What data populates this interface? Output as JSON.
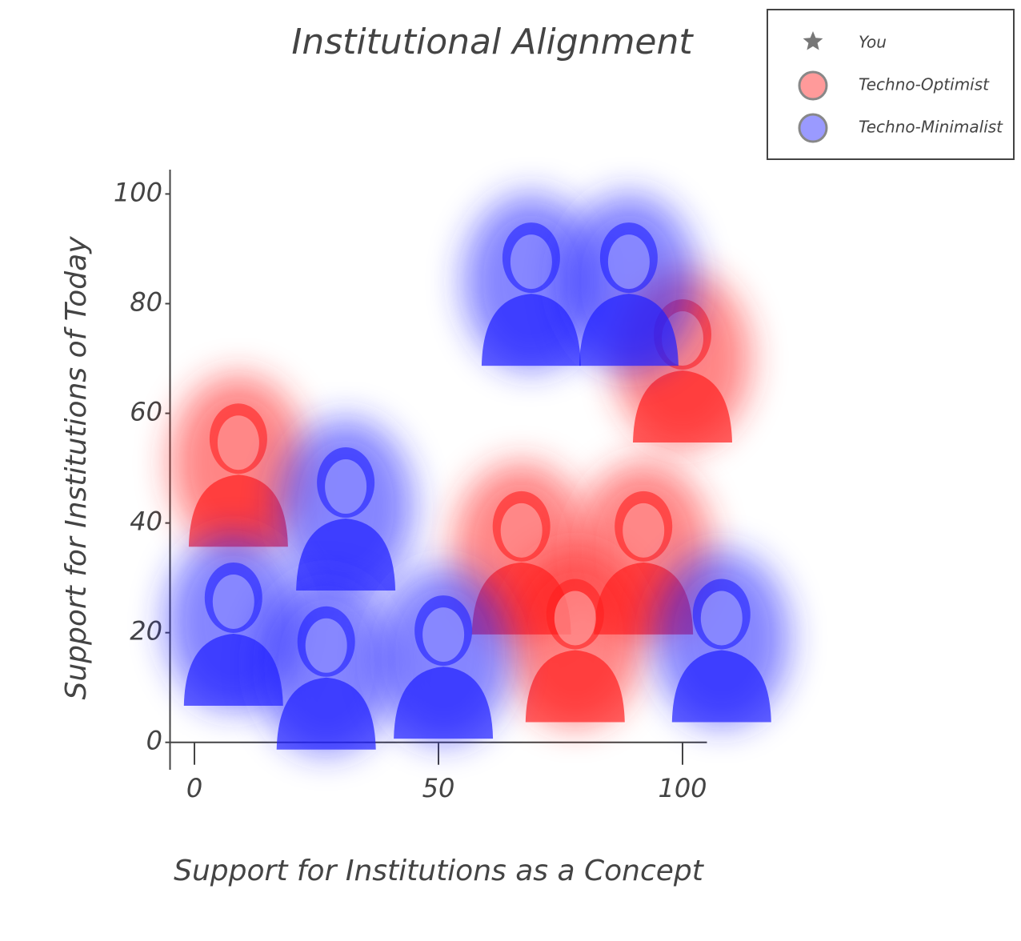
{
  "chart_data": {
    "type": "scatter",
    "title": "Institutional Alignment",
    "x_label": "Support for Institutions as a Concept",
    "y_label": "Support for Institutions of Today",
    "xlim": [
      -5,
      105
    ],
    "ylim": [
      -5,
      104
    ],
    "xticks": [
      0,
      50,
      100
    ],
    "yticks": [
      0,
      20,
      40,
      60,
      80,
      100
    ],
    "legend": "top-right",
    "series": [
      {
        "name": "You",
        "color": "#777777",
        "marker": "star",
        "x": [],
        "y": []
      },
      {
        "name": "Techno-Optimist",
        "color": "#ff2020",
        "marker": "circle",
        "x": [
          9,
          100,
          67,
          92,
          78
        ],
        "y": [
          51,
          70,
          35,
          35,
          19
        ]
      },
      {
        "name": "Techno-Minimalist",
        "color": "#2020ff",
        "marker": "circle",
        "x": [
          69,
          89,
          31,
          8,
          27,
          51,
          108
        ],
        "y": [
          84,
          84,
          43,
          22,
          14,
          16,
          19
        ]
      }
    ]
  }
}
